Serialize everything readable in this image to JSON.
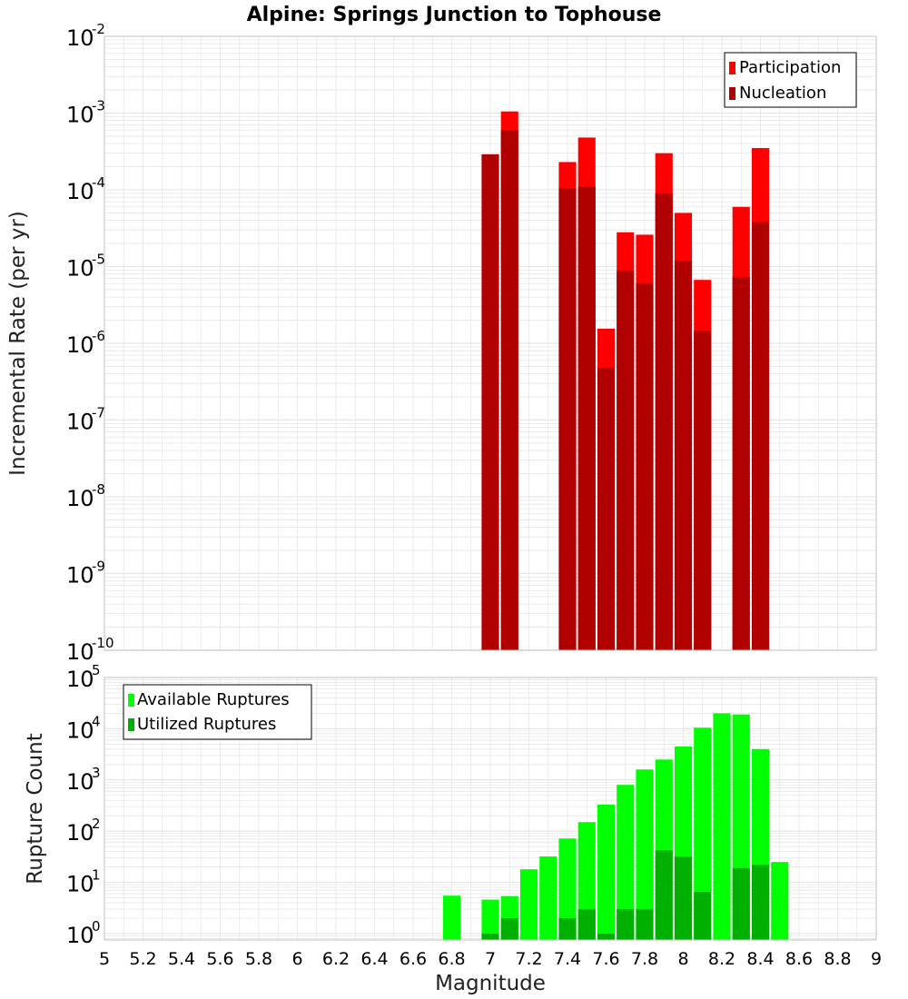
{
  "title": "Alpine: Springs Junction to Tophouse",
  "colors": {
    "participation": "#ff0000",
    "nucleation": "#b00000",
    "available": "#00ff00",
    "utilized": "#00b000",
    "grid": "#e6e6e6",
    "frame": "#c0c0c0"
  },
  "chart_data": [
    {
      "type": "bar",
      "scale": "log",
      "title": "Alpine: Springs Junction to Tophouse",
      "ylabel": "Incremental Rate (per yr)",
      "xlabel": "",
      "xlim": [
        5,
        9
      ],
      "ylim": [
        1e-10,
        0.01
      ],
      "ytick_labels": [
        {
          "base": "10",
          "exp": "-2",
          "value": 0.01
        },
        {
          "base": "10",
          "exp": "-3",
          "value": 0.001
        },
        {
          "base": "10",
          "exp": "-4",
          "value": 0.0001
        },
        {
          "base": "10",
          "exp": "-5",
          "value": 1e-05
        },
        {
          "base": "10",
          "exp": "-6",
          "value": 1e-06
        },
        {
          "base": "10",
          "exp": "-7",
          "value": 1e-07
        },
        {
          "base": "10",
          "exp": "-8",
          "value": 1e-08
        },
        {
          "base": "10",
          "exp": "-9",
          "value": 1e-09
        },
        {
          "base": "10",
          "exp": "-10",
          "value": 1e-10
        }
      ],
      "legend": {
        "position": "top-right",
        "entries": [
          "Participation",
          "Nucleation"
        ]
      },
      "x": [
        7.0,
        7.1,
        7.4,
        7.5,
        7.6,
        7.7,
        7.8,
        7.9,
        8.0,
        8.1,
        8.3,
        8.4
      ],
      "series": [
        {
          "name": "Participation",
          "values": [
            0.00029,
            0.00105,
            0.00023,
            0.00048,
            1.55e-06,
            2.8e-05,
            2.6e-05,
            0.0003,
            5e-05,
            6.7e-06,
            6e-05,
            0.00035
          ]
        },
        {
          "name": "Nucleation",
          "values": [
            0.00029,
            0.0006,
            0.000105,
            0.00011,
            4.8e-07,
            8.8e-06,
            6e-06,
            9e-05,
            1.2e-05,
            1.45e-06,
            7.3e-06,
            3.8e-05
          ]
        }
      ]
    },
    {
      "type": "bar",
      "scale": "log",
      "xlabel": "Magnitude",
      "ylabel": "Rupture Count",
      "xlim": [
        5,
        9
      ],
      "ylim": [
        0.75,
        100000
      ],
      "ytick_labels": [
        {
          "base": "10",
          "exp": "5",
          "value": 100000
        },
        {
          "base": "10",
          "exp": "4",
          "value": 10000
        },
        {
          "base": "10",
          "exp": "3",
          "value": 1000
        },
        {
          "base": "10",
          "exp": "2",
          "value": 100
        },
        {
          "base": "10",
          "exp": "1",
          "value": 10
        },
        {
          "base": "10",
          "exp": "0",
          "value": 1
        }
      ],
      "xtick_labels": [
        "5",
        "5.2",
        "5.4",
        "5.6",
        "5.8",
        "6",
        "6.2",
        "6.4",
        "6.6",
        "6.8",
        "7",
        "7.2",
        "7.4",
        "7.6",
        "7.8",
        "8",
        "8.2",
        "8.4",
        "8.6",
        "8.8",
        "9"
      ],
      "legend": {
        "position": "top-left",
        "entries": [
          "Available Ruptures",
          "Utilized Ruptures"
        ]
      },
      "series": [
        {
          "name": "Available Ruptures",
          "x": [
            6.8,
            7.0,
            7.1,
            7.2,
            7.3,
            7.4,
            7.5,
            7.6,
            7.7,
            7.8,
            7.9,
            8.0,
            8.1,
            8.2,
            8.3,
            8.4,
            8.5
          ],
          "values": [
            5.5,
            4.6,
            5.4,
            18,
            32,
            72,
            150,
            330,
            800,
            1600,
            2500,
            4500,
            10500,
            20000,
            19000,
            4000,
            25
          ]
        },
        {
          "name": "Utilized Ruptures",
          "x": [
            7.0,
            7.1,
            7.4,
            7.5,
            7.6,
            7.7,
            7.8,
            7.9,
            8.0,
            8.1,
            8.3,
            8.4
          ],
          "values": [
            1,
            2,
            2,
            3,
            1,
            3,
            3,
            42,
            32,
            6.5,
            19,
            22
          ]
        }
      ]
    }
  ]
}
